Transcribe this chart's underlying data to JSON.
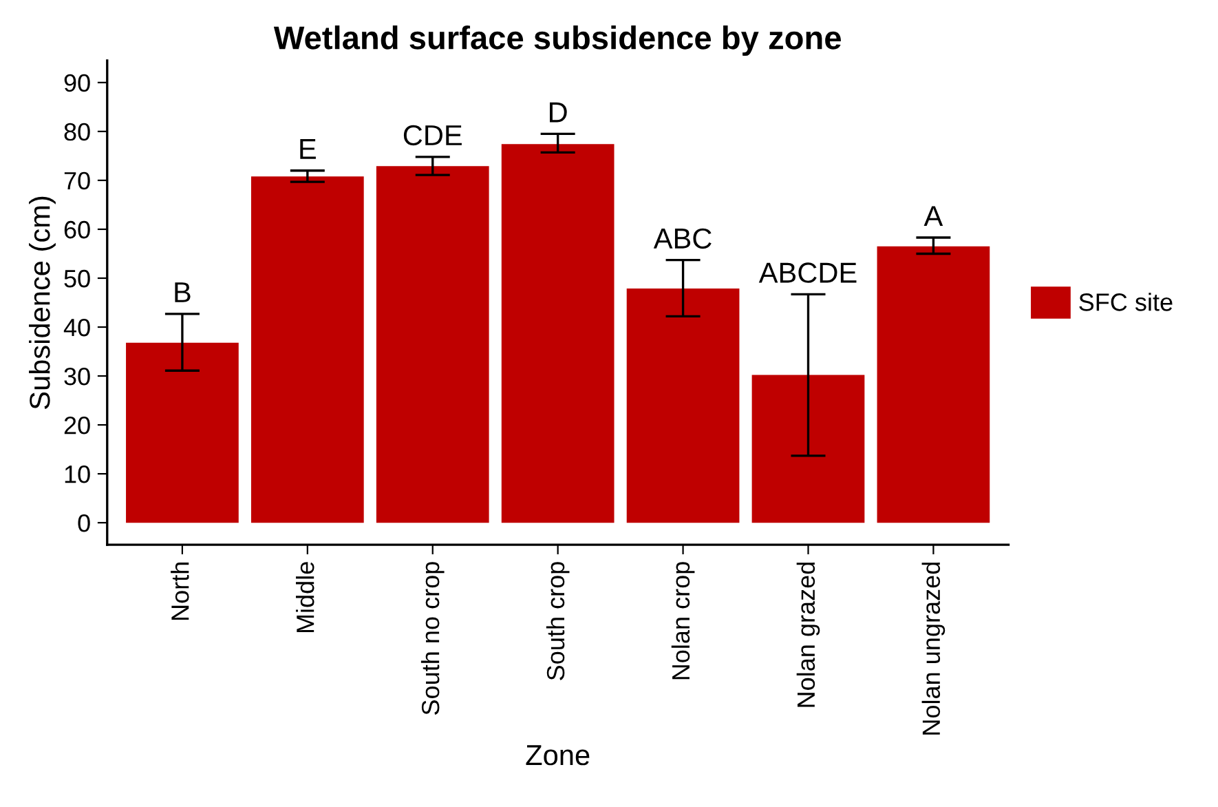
{
  "chart_data": {
    "type": "bar",
    "title": "Wetland surface subsidence by zone",
    "xlabel": "Zone",
    "ylabel": "Subsidence (cm)",
    "categories": [
      "North",
      "Middle",
      "South no crop",
      "South crop",
      "Nolan crop",
      "Nolan grazed",
      "Nolan ungrazed"
    ],
    "series": [
      {
        "name": "SFC site",
        "color": "#bf0000",
        "values": [
          36.8,
          70.8,
          72.9,
          77.4,
          47.9,
          30.2,
          56.5
        ],
        "errors": [
          [
            31.1,
            42.7
          ],
          [
            69.7,
            72.0
          ],
          [
            71.1,
            74.8
          ],
          [
            75.7,
            79.5
          ],
          [
            42.2,
            53.7
          ],
          [
            13.7,
            46.7
          ],
          [
            55.0,
            58.3
          ]
        ]
      }
    ],
    "annotations": [
      {
        "text": "B",
        "x": "North",
        "y": 42.7
      },
      {
        "text": "E",
        "x": "Middle",
        "y": 72.0
      },
      {
        "text": "CDE",
        "x": "South no crop",
        "y": 74.8
      },
      {
        "text": "D",
        "x": "South crop",
        "y": 79.5
      },
      {
        "text": "ABC",
        "x": "Nolan crop",
        "y": 53.7
      },
      {
        "text": "ABCDE",
        "x": "Nolan grazed",
        "y": 46.7
      },
      {
        "text": "A",
        "x": "Nolan ungrazed",
        "y": 58.3
      }
    ],
    "ylim": [
      -4.5,
      94.5
    ],
    "yticks": [
      0,
      10,
      20,
      30,
      40,
      50,
      60,
      70,
      80,
      90
    ],
    "grid": false,
    "legend": "right"
  }
}
